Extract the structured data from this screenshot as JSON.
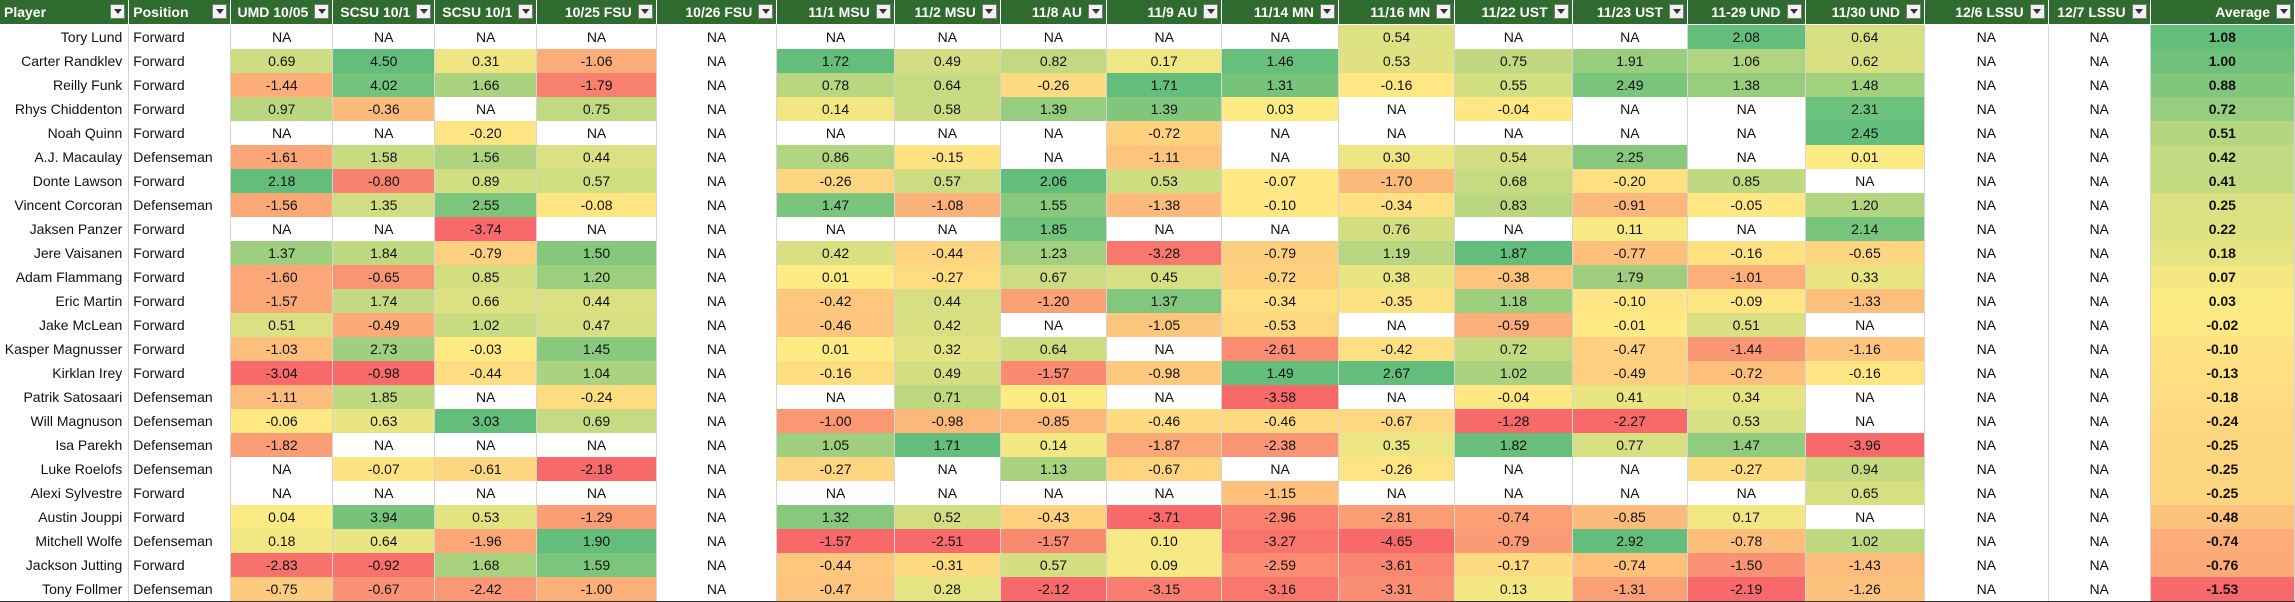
{
  "sheet": {
    "headers": [
      "Player",
      "Position",
      "UMD 10/05",
      "SCSU 10/1",
      "SCSU 10/1",
      "10/25 FSU",
      "10/26 FSU",
      "11/1 MSU",
      "11/2 MSU",
      "11/8 AU",
      "11/9 AU",
      "11/14 MN",
      "11/16 MN",
      "11/22 UST",
      "11/23 UST",
      "11-29 UND",
      "11/30 UND",
      "12/6 LSSU",
      "12/7 LSSU",
      "Average"
    ],
    "rows": [
      {
        "player": "Tory Lund",
        "position": "Forward",
        "values": [
          "NA",
          "NA",
          "NA",
          "NA",
          "NA",
          "NA",
          "NA",
          "NA",
          "NA",
          "NA",
          "0.54",
          "NA",
          "NA",
          "2.08",
          "0.64",
          "NA",
          "NA"
        ],
        "average": "1.08"
      },
      {
        "player": "Carter Randklev",
        "position": "Forward",
        "values": [
          "0.69",
          "4.50",
          "0.31",
          "-1.06",
          "NA",
          "1.72",
          "0.49",
          "0.82",
          "0.17",
          "1.46",
          "0.53",
          "0.75",
          "1.91",
          "1.06",
          "0.62",
          "NA",
          "NA"
        ],
        "average": "1.00"
      },
      {
        "player": "Reilly Funk",
        "position": "Forward",
        "values": [
          "-1.44",
          "4.02",
          "1.66",
          "-1.79",
          "NA",
          "0.78",
          "0.64",
          "-0.26",
          "1.71",
          "1.31",
          "-0.16",
          "0.55",
          "2.49",
          "1.38",
          "1.48",
          "NA",
          "NA"
        ],
        "average": "0.88"
      },
      {
        "player": "Rhys Chiddenton",
        "position": "Forward",
        "values": [
          "0.97",
          "-0.36",
          "NA",
          "0.75",
          "NA",
          "0.14",
          "0.58",
          "1.39",
          "1.39",
          "0.03",
          "NA",
          "-0.04",
          "NA",
          "NA",
          "2.31",
          "NA",
          "NA"
        ],
        "average": "0.72"
      },
      {
        "player": "Noah Quinn",
        "position": "Forward",
        "values": [
          "NA",
          "NA",
          "-0.20",
          "NA",
          "NA",
          "NA",
          "NA",
          "NA",
          "-0.72",
          "NA",
          "NA",
          "NA",
          "NA",
          "NA",
          "2.45",
          "NA",
          "NA"
        ],
        "average": "0.51"
      },
      {
        "player": "A.J. Macaulay",
        "position": "Defenseman",
        "values": [
          "-1.61",
          "1.58",
          "1.56",
          "0.44",
          "NA",
          "0.86",
          "-0.15",
          "NA",
          "-1.11",
          "NA",
          "0.30",
          "0.54",
          "2.25",
          "NA",
          "0.01",
          "NA",
          "NA"
        ],
        "average": "0.42"
      },
      {
        "player": "Donte Lawson",
        "position": "Forward",
        "values": [
          "2.18",
          "-0.80",
          "0.89",
          "0.57",
          "NA",
          "-0.26",
          "0.57",
          "2.06",
          "0.53",
          "-0.07",
          "-1.70",
          "0.68",
          "-0.20",
          "0.85",
          "NA",
          "NA",
          "NA"
        ],
        "average": "0.41"
      },
      {
        "player": "Vincent Corcoran",
        "position": "Defenseman",
        "values": [
          "-1.56",
          "1.35",
          "2.55",
          "-0.08",
          "NA",
          "1.47",
          "-1.08",
          "1.55",
          "-1.38",
          "-0.10",
          "-0.34",
          "0.83",
          "-0.91",
          "-0.05",
          "1.20",
          "NA",
          "NA"
        ],
        "average": "0.25"
      },
      {
        "player": "Jaksen Panzer",
        "position": "Forward",
        "values": [
          "NA",
          "NA",
          "-3.74",
          "NA",
          "NA",
          "NA",
          "NA",
          "1.85",
          "NA",
          "NA",
          "0.76",
          "NA",
          "0.11",
          "NA",
          "2.14",
          "NA",
          "NA"
        ],
        "average": "0.22"
      },
      {
        "player": "Jere Vaisanen",
        "position": "Forward",
        "values": [
          "1.37",
          "1.84",
          "-0.79",
          "1.50",
          "NA",
          "0.42",
          "-0.44",
          "1.23",
          "-3.28",
          "-0.79",
          "1.19",
          "1.87",
          "-0.77",
          "-0.16",
          "-0.65",
          "NA",
          "NA"
        ],
        "average": "0.18"
      },
      {
        "player": "Adam Flammang",
        "position": "Forward",
        "values": [
          "-1.60",
          "-0.65",
          "0.85",
          "1.20",
          "NA",
          "0.01",
          "-0.27",
          "0.67",
          "0.45",
          "-0.72",
          "0.38",
          "-0.38",
          "1.79",
          "-1.01",
          "0.33",
          "NA",
          "NA"
        ],
        "average": "0.07"
      },
      {
        "player": "Eric Martin",
        "position": "Forward",
        "values": [
          "-1.57",
          "1.74",
          "0.66",
          "0.44",
          "NA",
          "-0.42",
          "0.44",
          "-1.20",
          "1.37",
          "-0.34",
          "-0.35",
          "1.18",
          "-0.10",
          "-0.09",
          "-1.33",
          "NA",
          "NA"
        ],
        "average": "0.03"
      },
      {
        "player": "Jake McLean",
        "position": "Forward",
        "values": [
          "0.51",
          "-0.49",
          "1.02",
          "0.47",
          "NA",
          "-0.46",
          "0.42",
          "NA",
          "-1.05",
          "-0.53",
          "NA",
          "-0.59",
          "-0.01",
          "0.51",
          "NA",
          "NA",
          "NA"
        ],
        "average": "-0.02"
      },
      {
        "player": "Kasper Magnusser",
        "position": "Forward",
        "values": [
          "-1.03",
          "2.73",
          "-0.03",
          "1.45",
          "NA",
          "0.01",
          "0.32",
          "0.64",
          "NA",
          "-2.61",
          "-0.42",
          "0.72",
          "-0.47",
          "-1.44",
          "-1.16",
          "NA",
          "NA"
        ],
        "average": "-0.10"
      },
      {
        "player": "Kirklan Irey",
        "position": "Forward",
        "values": [
          "-3.04",
          "-0.98",
          "-0.44",
          "1.04",
          "NA",
          "-0.16",
          "0.49",
          "-1.57",
          "-0.98",
          "1.49",
          "2.67",
          "1.02",
          "-0.49",
          "-0.72",
          "-0.16",
          "NA",
          "NA"
        ],
        "average": "-0.13"
      },
      {
        "player": "Patrik Satosaari",
        "position": "Defenseman",
        "values": [
          "-1.11",
          "1.85",
          "NA",
          "-0.24",
          "NA",
          "NA",
          "0.71",
          "0.01",
          "NA",
          "-3.58",
          "NA",
          "-0.04",
          "0.41",
          "0.34",
          "NA",
          "NA",
          "NA"
        ],
        "average": "-0.18"
      },
      {
        "player": "Will Magnuson",
        "position": "Defenseman",
        "values": [
          "-0.06",
          "0.63",
          "3.03",
          "0.69",
          "NA",
          "-1.00",
          "-0.98",
          "-0.85",
          "-0.46",
          "-0.46",
          "-0.67",
          "-1.28",
          "-2.27",
          "0.53",
          "NA",
          "NA",
          "NA"
        ],
        "average": "-0.24"
      },
      {
        "player": "Isa Parekh",
        "position": "Defenseman",
        "values": [
          "-1.82",
          "NA",
          "NA",
          "NA",
          "NA",
          "1.05",
          "1.71",
          "0.14",
          "-1.87",
          "-2.38",
          "0.35",
          "1.82",
          "0.77",
          "1.47",
          "-3.96",
          "NA",
          "NA"
        ],
        "average": "-0.25"
      },
      {
        "player": "Luke Roelofs",
        "position": "Defenseman",
        "values": [
          "NA",
          "-0.07",
          "-0.61",
          "-2.18",
          "NA",
          "-0.27",
          "NA",
          "1.13",
          "-0.67",
          "NA",
          "-0.26",
          "NA",
          "NA",
          "-0.27",
          "0.94",
          "NA",
          "NA"
        ],
        "average": "-0.25"
      },
      {
        "player": "Alexi Sylvestre",
        "position": "Forward",
        "values": [
          "NA",
          "NA",
          "NA",
          "NA",
          "NA",
          "NA",
          "NA",
          "NA",
          "NA",
          "-1.15",
          "NA",
          "NA",
          "NA",
          "NA",
          "0.65",
          "NA",
          "NA"
        ],
        "average": "-0.25"
      },
      {
        "player": "Austin Jouppi",
        "position": "Forward",
        "values": [
          "0.04",
          "3.94",
          "0.53",
          "-1.29",
          "NA",
          "1.32",
          "0.52",
          "-0.43",
          "-3.71",
          "-2.96",
          "-2.81",
          "-0.74",
          "-0.85",
          "0.17",
          "NA",
          "NA",
          "NA"
        ],
        "average": "-0.48"
      },
      {
        "player": "Mitchell Wolfe",
        "position": "Defenseman",
        "values": [
          "0.18",
          "0.64",
          "-1.96",
          "1.90",
          "NA",
          "-1.57",
          "-2.51",
          "-1.57",
          "0.10",
          "-3.27",
          "-4.65",
          "-0.79",
          "2.92",
          "-0.78",
          "1.02",
          "NA",
          "NA"
        ],
        "average": "-0.74"
      },
      {
        "player": "Jackson Jutting",
        "position": "Forward",
        "values": [
          "-2.83",
          "-0.92",
          "1.68",
          "1.59",
          "NA",
          "-0.44",
          "-0.31",
          "0.57",
          "0.09",
          "-2.59",
          "-3.61",
          "-0.17",
          "-0.74",
          "-1.50",
          "-1.43",
          "NA",
          "NA"
        ],
        "average": "-0.76"
      },
      {
        "player": "Tony Follmer",
        "position": "Defenseman",
        "values": [
          "-0.75",
          "-0.67",
          "-2.42",
          "-1.00",
          "NA",
          "-0.47",
          "0.28",
          "-2.12",
          "-3.15",
          "-3.16",
          "-3.31",
          "0.13",
          "-1.31",
          "-2.19",
          "-1.26",
          "NA",
          "NA"
        ],
        "average": "-1.53"
      }
    ],
    "colors": {
      "header_bg": "#2f6b2f",
      "scale_low": "#f8696b",
      "scale_mid": "#ffeb84",
      "scale_high": "#63be7b"
    }
  }
}
